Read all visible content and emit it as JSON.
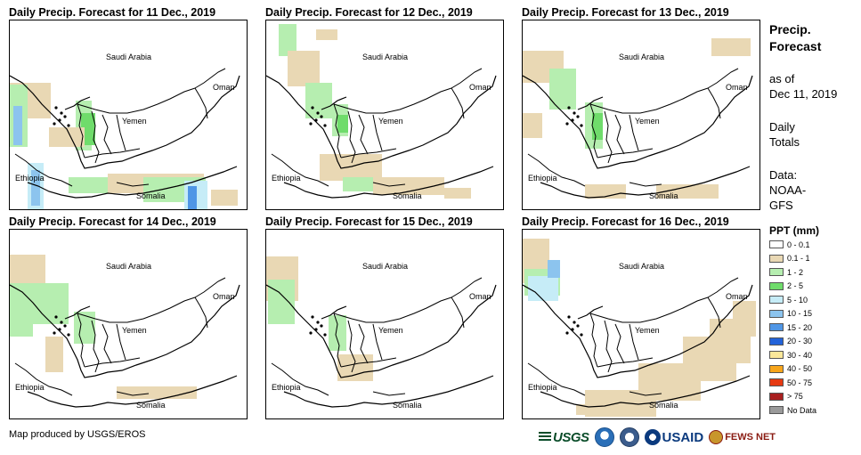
{
  "panels": [
    {
      "title": "Daily Precip. Forecast for 11 Dec., 2019"
    },
    {
      "title": "Daily Precip. Forecast for 12 Dec., 2019"
    },
    {
      "title": "Daily Precip. Forecast for 13 Dec., 2019"
    },
    {
      "title": "Daily Precip. Forecast for 14 Dec., 2019"
    },
    {
      "title": "Daily Precip. Forecast for 15 Dec., 2019"
    },
    {
      "title": "Daily Precip. Forecast for 16 Dec., 2019"
    }
  ],
  "map_labels": {
    "saudi": "Saudi Arabia",
    "oman": "Oman",
    "yemen": "Yemen",
    "ethiopia": "Ethiopia",
    "somalia": "Somalia"
  },
  "legend": {
    "title_line1": "Precip.",
    "title_line2": "Forecast",
    "asof_line1": "as of",
    "asof_line2": "Dec 11, 2019",
    "daily_line1": "Daily",
    "daily_line2": "Totals",
    "source_line1": "Data:",
    "source_line2": "NOAA-",
    "source_line3": "GFS",
    "ppt_heading": "PPT (mm)",
    "classes": [
      {
        "label": "0 - 0.1",
        "color": "#ffffff"
      },
      {
        "label": "0.1 - 1",
        "color": "#e9d8b4"
      },
      {
        "label": "1 - 2",
        "color": "#b6eeb0"
      },
      {
        "label": "2 - 5",
        "color": "#6fdc6b"
      },
      {
        "label": "5 - 10",
        "color": "#c6ecf7"
      },
      {
        "label": "10 - 15",
        "color": "#8cc4ee"
      },
      {
        "label": "15 - 20",
        "color": "#4f96e6"
      },
      {
        "label": "20 - 30",
        "color": "#2363d9"
      },
      {
        "label": "30 - 40",
        "color": "#fbe89a"
      },
      {
        "label": "40 - 50",
        "color": "#f7a51b"
      },
      {
        "label": "50 - 75",
        "color": "#e63a12"
      },
      {
        "label": "> 75",
        "color": "#a81f1f"
      },
      {
        "label": "No Data",
        "color": "#9a9a9a"
      }
    ]
  },
  "footer": {
    "credit": "Map produced by USGS/EROS",
    "logo_usgs": "USGS",
    "logo_usaid": "USAID",
    "logo_fews": "FEWS NET"
  },
  "colors": {
    "tan": "#e9d8b4",
    "light_green": "#b6eeb0",
    "green": "#6fdc6b",
    "pale_blue": "#c6ecf7",
    "blue": "#8cc4ee",
    "mid_blue": "#4f96e6"
  }
}
